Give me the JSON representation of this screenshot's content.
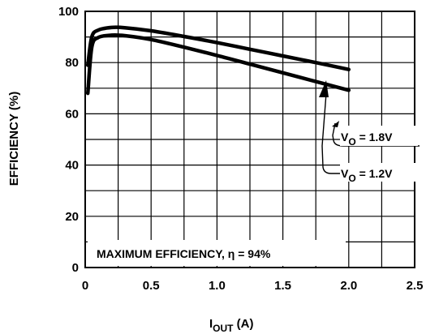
{
  "chart_data": {
    "type": "line",
    "xlabel": "I",
    "xlabel_sub": "OUT",
    "xlabel_unit": " (A)",
    "ylabel": "EFFICIENCY (%)",
    "xlim": [
      0,
      2.5
    ],
    "ylim": [
      0,
      100
    ],
    "grid": true,
    "x_ticks": [
      "0",
      "0.5",
      "1.0",
      "1.5",
      "2.0",
      "2.5"
    ],
    "y_ticks": [
      "0",
      "20",
      "40",
      "60",
      "80",
      "100"
    ],
    "annotation": "MAXIMUM EFFICIENCY, η = 94%",
    "series": [
      {
        "name": "V",
        "name_sub": "O",
        "name_suffix": " = 1.8V",
        "x": [
          0.02,
          0.05,
          0.1,
          0.2,
          0.3,
          0.5,
          0.75,
          1.0,
          1.25,
          1.5,
          1.75,
          2.0
        ],
        "y": [
          79,
          90,
          92.7,
          93.7,
          93.6,
          92.4,
          90.2,
          87.8,
          85.2,
          82.6,
          80.0,
          77.3
        ]
      },
      {
        "name": "V",
        "name_sub": "O",
        "name_suffix": " = 1.2V",
        "x": [
          0.02,
          0.05,
          0.1,
          0.2,
          0.3,
          0.5,
          0.75,
          1.0,
          1.25,
          1.5,
          1.75,
          2.0
        ],
        "y": [
          68,
          86,
          89.8,
          90.7,
          90.5,
          89.0,
          86.0,
          82.8,
          79.4,
          76.0,
          72.6,
          69.2
        ]
      }
    ]
  }
}
